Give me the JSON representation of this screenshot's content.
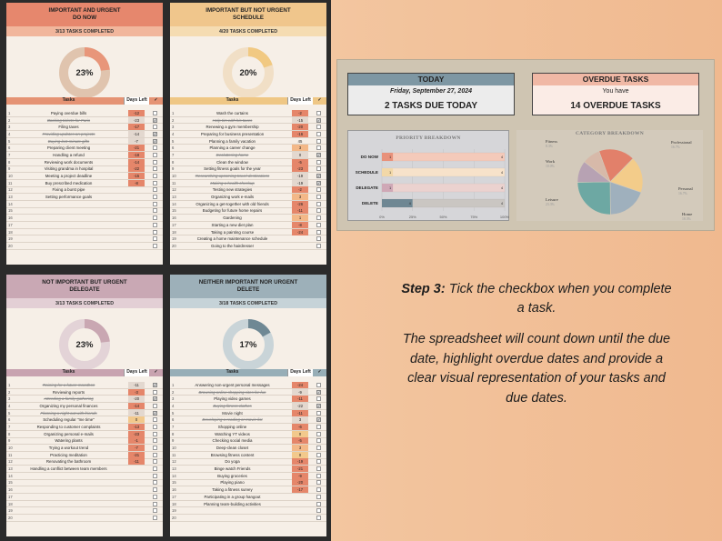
{
  "quadrants": [
    {
      "key": "do",
      "title": "IMPORTANT AND URGENT\nDO NOW",
      "completed": "3/13 TASKS COMPLETED",
      "pct_label": "23%",
      "pct": 0.23,
      "colors": {
        "head": "#e6876d",
        "sub": "#f1b69c",
        "tbl": "#e59374",
        "ring": "#e0c4ae",
        "fill": "#e8967a"
      },
      "rows": [
        {
          "n": "1",
          "t": "Paying overdue bills",
          "d": "-12",
          "c": false
        },
        {
          "n": "2",
          "t": "Booking tickets for Paris",
          "d": "-23",
          "c": true
        },
        {
          "n": "3",
          "t": "Filing taxes",
          "d": "-17",
          "c": false
        },
        {
          "n": "4",
          "t": "Providing updates on projects",
          "d": "-14",
          "c": true
        },
        {
          "n": "5",
          "t": "Buying last-minute gifts",
          "d": "-7",
          "c": true
        },
        {
          "n": "6",
          "t": "Preparing client meeting",
          "d": "-21",
          "c": false
        },
        {
          "n": "7",
          "t": "Handling a refund",
          "d": "-18",
          "c": false
        },
        {
          "n": "8",
          "t": "Reviewing work documents",
          "d": "-14",
          "c": false
        },
        {
          "n": "9",
          "t": "Visiting grandma in hospital",
          "d": "-22",
          "c": false
        },
        {
          "n": "10",
          "t": "Meeting a project deadline",
          "d": "-15",
          "c": false
        },
        {
          "n": "11",
          "t": "Buy prescribed medication",
          "d": "-8",
          "c": false
        },
        {
          "n": "12",
          "t": "Fixing a burst pipe",
          "d": "",
          "c": false
        },
        {
          "n": "13",
          "t": "Setting performance goals",
          "d": "",
          "c": false
        },
        {
          "n": "14",
          "t": "",
          "d": "",
          "c": false
        },
        {
          "n": "15",
          "t": "",
          "d": "",
          "c": false
        },
        {
          "n": "16",
          "t": "",
          "d": "",
          "c": false
        },
        {
          "n": "17",
          "t": "",
          "d": "",
          "c": false
        },
        {
          "n": "18",
          "t": "",
          "d": "",
          "c": false
        },
        {
          "n": "19",
          "t": "",
          "d": "",
          "c": false
        },
        {
          "n": "20",
          "t": "",
          "d": "",
          "c": false
        }
      ]
    },
    {
      "key": "schedule",
      "title": "IMPORTANT BUT NOT URGENT\nSCHEDULE",
      "completed": "4/20 TASKS COMPLETED",
      "pct_label": "20%",
      "pct": 0.2,
      "colors": {
        "head": "#f0c68c",
        "sub": "#f5dcb2",
        "tbl": "#efc785",
        "ring": "#f1dfc6",
        "fill": "#f1c982"
      },
      "rows": [
        {
          "n": "1",
          "t": "Wash the curtains",
          "d": "-2",
          "c": false
        },
        {
          "n": "2",
          "t": "Help tim with his taxes",
          "d": "-15",
          "c": true
        },
        {
          "n": "3",
          "t": "Renewing a gym membership",
          "d": "-20",
          "c": false
        },
        {
          "n": "4",
          "t": "Preparing for business presentation",
          "d": "-16",
          "c": false
        },
        {
          "n": "5",
          "t": "Planning a family vacation",
          "d": "45",
          "c": false
        },
        {
          "n": "6",
          "t": "Planning a career change",
          "d": "3",
          "c": false
        },
        {
          "n": "7",
          "t": "Decluttering home",
          "d": "0",
          "c": true
        },
        {
          "n": "8",
          "t": "Clean the window",
          "d": "-5",
          "c": false
        },
        {
          "n": "9",
          "t": "Setting fitness goals for the year",
          "d": "-23",
          "c": false
        },
        {
          "n": "10",
          "t": "Researching upcoming travel destinations",
          "d": "-19",
          "c": true
        },
        {
          "n": "11",
          "t": "Making a health checkup",
          "d": "-19",
          "c": true
        },
        {
          "n": "12",
          "t": "Testing new strategies",
          "d": "-2",
          "c": false
        },
        {
          "n": "13",
          "t": "Organizing work e-mails",
          "d": "3",
          "c": false
        },
        {
          "n": "14",
          "t": "Organizing a get-together with old friends",
          "d": "-26",
          "c": false
        },
        {
          "n": "15",
          "t": "Budgeting for future home repairs",
          "d": "-11",
          "c": false
        },
        {
          "n": "16",
          "t": "Gardening",
          "d": "1",
          "c": false
        },
        {
          "n": "17",
          "t": "Starting a new diet plan",
          "d": "-8",
          "c": false
        },
        {
          "n": "18",
          "t": "Taking a painting course",
          "d": "-24",
          "c": false
        },
        {
          "n": "19",
          "t": "Creating a home maintenance schedule",
          "d": "",
          "c": false
        },
        {
          "n": "20",
          "t": "Going to the hairdresser",
          "d": "",
          "c": false
        }
      ]
    },
    {
      "key": "delegate",
      "title": "NOT IMPORTANT BUT URGENT\nDELEGATE",
      "completed": "3/13 TASKS COMPLETED",
      "pct_label": "23%",
      "pct": 0.23,
      "colors": {
        "head": "#c9a8b4",
        "sub": "#e3cfd5",
        "tbl": "#c8a3b0",
        "ring": "#e3d3d7",
        "fill": "#c9a7b2"
      },
      "rows": [
        {
          "n": "1",
          "t": "Training for a future marathon",
          "d": "-11",
          "c": true
        },
        {
          "n": "2",
          "t": "Reviewing reports",
          "d": "-3",
          "c": false
        },
        {
          "n": "3",
          "t": "Attending a family gathering",
          "d": "-20",
          "c": true
        },
        {
          "n": "4",
          "t": "Organizing my personal finances",
          "d": "-14",
          "c": false
        },
        {
          "n": "5",
          "t": "Planning a night out with friends",
          "d": "-11",
          "c": true
        },
        {
          "n": "6",
          "t": "Scheduling regular \"me time\"",
          "d": "0",
          "c": false
        },
        {
          "n": "7",
          "t": "Responding to customer complaints",
          "d": "-13",
          "c": false
        },
        {
          "n": "8",
          "t": "Organizing personal e-mails",
          "d": "-23",
          "c": false
        },
        {
          "n": "9",
          "t": "Watering plants",
          "d": "-1",
          "c": false
        },
        {
          "n": "10",
          "t": "Trying a workout trend",
          "d": "-7",
          "c": false
        },
        {
          "n": "11",
          "t": "Practicing meditation",
          "d": "-21",
          "c": false
        },
        {
          "n": "12",
          "t": "Renovating the bathroom",
          "d": "-11",
          "c": false
        },
        {
          "n": "13",
          "t": "Handling a conflict between team members",
          "d": "",
          "c": false
        },
        {
          "n": "14",
          "t": "",
          "d": "",
          "c": false
        },
        {
          "n": "15",
          "t": "",
          "d": "",
          "c": false
        },
        {
          "n": "16",
          "t": "",
          "d": "",
          "c": false
        },
        {
          "n": "17",
          "t": "",
          "d": "",
          "c": false
        },
        {
          "n": "18",
          "t": "",
          "d": "",
          "c": false
        },
        {
          "n": "19",
          "t": "",
          "d": "",
          "c": false
        },
        {
          "n": "20",
          "t": "",
          "d": "",
          "c": false
        }
      ]
    },
    {
      "key": "delete",
      "title": "NEITHER IMPORTANT NOR URGENT\nDELETE",
      "completed": "3/18 TASKS COMPLETED",
      "pct_label": "17%",
      "pct": 0.17,
      "colors": {
        "head": "#9db0b9",
        "sub": "#c6d3d8",
        "tbl": "#97aeb7",
        "ring": "#c9d4d8",
        "fill": "#6f8894"
      },
      "rows": [
        {
          "n": "1",
          "t": "Answering non-urgent personal messages",
          "d": "-24",
          "c": false
        },
        {
          "n": "2",
          "t": "Browsing online shopping sites for fun",
          "d": "-9",
          "c": true
        },
        {
          "n": "3",
          "t": "Playing video games",
          "d": "-11",
          "c": false
        },
        {
          "n": "4",
          "t": "Buying fitness clothes",
          "d": "-22",
          "c": true
        },
        {
          "n": "5",
          "t": "Movie night",
          "d": "-11",
          "c": false
        },
        {
          "n": "6",
          "t": "Developing a reading or movie list",
          "d": "3",
          "c": true
        },
        {
          "n": "7",
          "t": "Shopping online",
          "d": "-6",
          "c": false
        },
        {
          "n": "8",
          "t": "Watching YT videos",
          "d": "0",
          "c": false
        },
        {
          "n": "9",
          "t": "Checking social media",
          "d": "-5",
          "c": false
        },
        {
          "n": "10",
          "t": "Deep-clean closet",
          "d": "3",
          "c": false
        },
        {
          "n": "11",
          "t": "Browsing fitness content",
          "d": "0",
          "c": false
        },
        {
          "n": "12",
          "t": "Do yoga",
          "d": "-19",
          "c": false
        },
        {
          "n": "13",
          "t": "Binge watch Friends",
          "d": "-21",
          "c": false
        },
        {
          "n": "14",
          "t": "Buying groceries",
          "d": "-9",
          "c": false
        },
        {
          "n": "15",
          "t": "Playing piano",
          "d": "-20",
          "c": false
        },
        {
          "n": "16",
          "t": "Taking a fitness survey",
          "d": "-17",
          "c": false
        },
        {
          "n": "17",
          "t": "Participating in a group hangout",
          "d": "",
          "c": false
        },
        {
          "n": "18",
          "t": "Planning team-building activities",
          "d": "",
          "c": false
        },
        {
          "n": "19",
          "t": "",
          "d": "",
          "c": false
        },
        {
          "n": "20",
          "t": "",
          "d": "",
          "c": false
        }
      ]
    }
  ],
  "table_headers": {
    "tasks": "Tasks",
    "days_left": "Days Left",
    "check": "✓"
  },
  "dashboard": {
    "today": {
      "title": "TODAY",
      "date": "Friday, September 27, 2024",
      "count_text": "2  TASKS DUE TODAY",
      "color": "#7e97a3"
    },
    "overdue": {
      "title": "OVERDUE TASKS",
      "line1": "You have",
      "count_text": "14  OVERDUE TASKS",
      "color": "#f0b8a5"
    }
  },
  "chart_data": [
    {
      "type": "bar",
      "title": "PRIORITY BREAKDOWN",
      "categories": [
        "DO NOW",
        "SCHEDULE",
        "DELEGATE",
        "DELETE"
      ],
      "series": [
        {
          "values": [
            1,
            1,
            1,
            4
          ]
        },
        {
          "values": [
            4,
            4,
            4,
            4
          ]
        }
      ],
      "tick_labels": [
        "0%",
        "25%",
        "50%",
        "75%",
        "100%"
      ],
      "xlim": [
        0,
        100
      ],
      "colors": [
        "#e8917a",
        "#f2d8a8",
        "#cfa8b6",
        "#6f8793"
      ]
    },
    {
      "type": "pie",
      "title": "CATEGORY BREAKDOWN",
      "slices": [
        {
          "name": "Professional",
          "value": 16.7,
          "label": "16.7%",
          "color": "#e2806a"
        },
        {
          "name": "Personal",
          "value": 16.7,
          "label": "16.7%",
          "color": "#f3cc8a"
        },
        {
          "name": "Home",
          "value": 18.3,
          "label": "18.3%",
          "color": "#9fb0bd"
        },
        {
          "name": "Leisure",
          "value": 23.3,
          "label": "23.3%",
          "color": "#6da8a3"
        },
        {
          "name": "Work",
          "value": 10.0,
          "label": "10.0%",
          "color": "#b7a2b3"
        },
        {
          "name": "Fitness",
          "value": 8.3,
          "label": "8.3%",
          "color": "#d7b9a9"
        }
      ]
    }
  ],
  "instructions": {
    "step_label": "Step 3:",
    "step_text": " Tick the checkbox when you complete a task.",
    "body": "The spreadsheet will count down until the due date, highlight overdue dates and provide  a clear visual representation of your tasks and due dates."
  }
}
